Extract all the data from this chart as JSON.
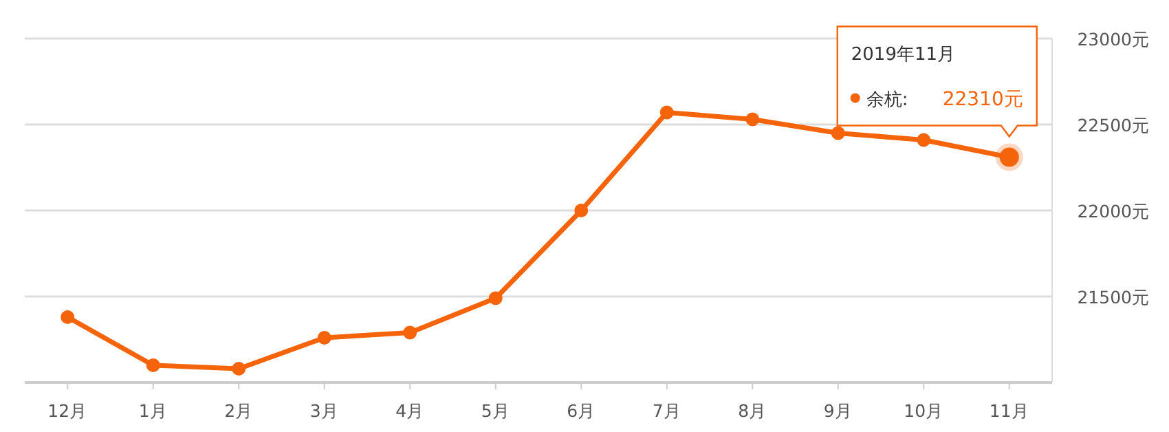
{
  "chart_data": {
    "type": "line",
    "categories": [
      "12月",
      "1月",
      "2月",
      "3月",
      "4月",
      "5月",
      "6月",
      "7月",
      "8月",
      "9月",
      "10月",
      "11月"
    ],
    "series": [
      {
        "name": "余杭:",
        "color": "#f5640a",
        "values": [
          21380,
          21100,
          21080,
          21260,
          21290,
          21490,
          22000,
          22570,
          22530,
          22450,
          22410,
          22310
        ],
        "value_labels": [
          null,
          null,
          null,
          null,
          null,
          null,
          null,
          null,
          null,
          null,
          null,
          "22310元"
        ]
      }
    ],
    "ylim": [
      21000,
      23000
    ],
    "yticks": [
      {
        "value": 21500,
        "label": "21500元"
      },
      {
        "value": 22000,
        "label": "22000元"
      },
      {
        "value": 22500,
        "label": "22500元"
      },
      {
        "value": 23000,
        "label": "23000元"
      }
    ],
    "grid": "y",
    "marker": "circle",
    "line_style": "solid",
    "legend": "top right",
    "annotations": [
      "2019年11月"
    ]
  }
}
